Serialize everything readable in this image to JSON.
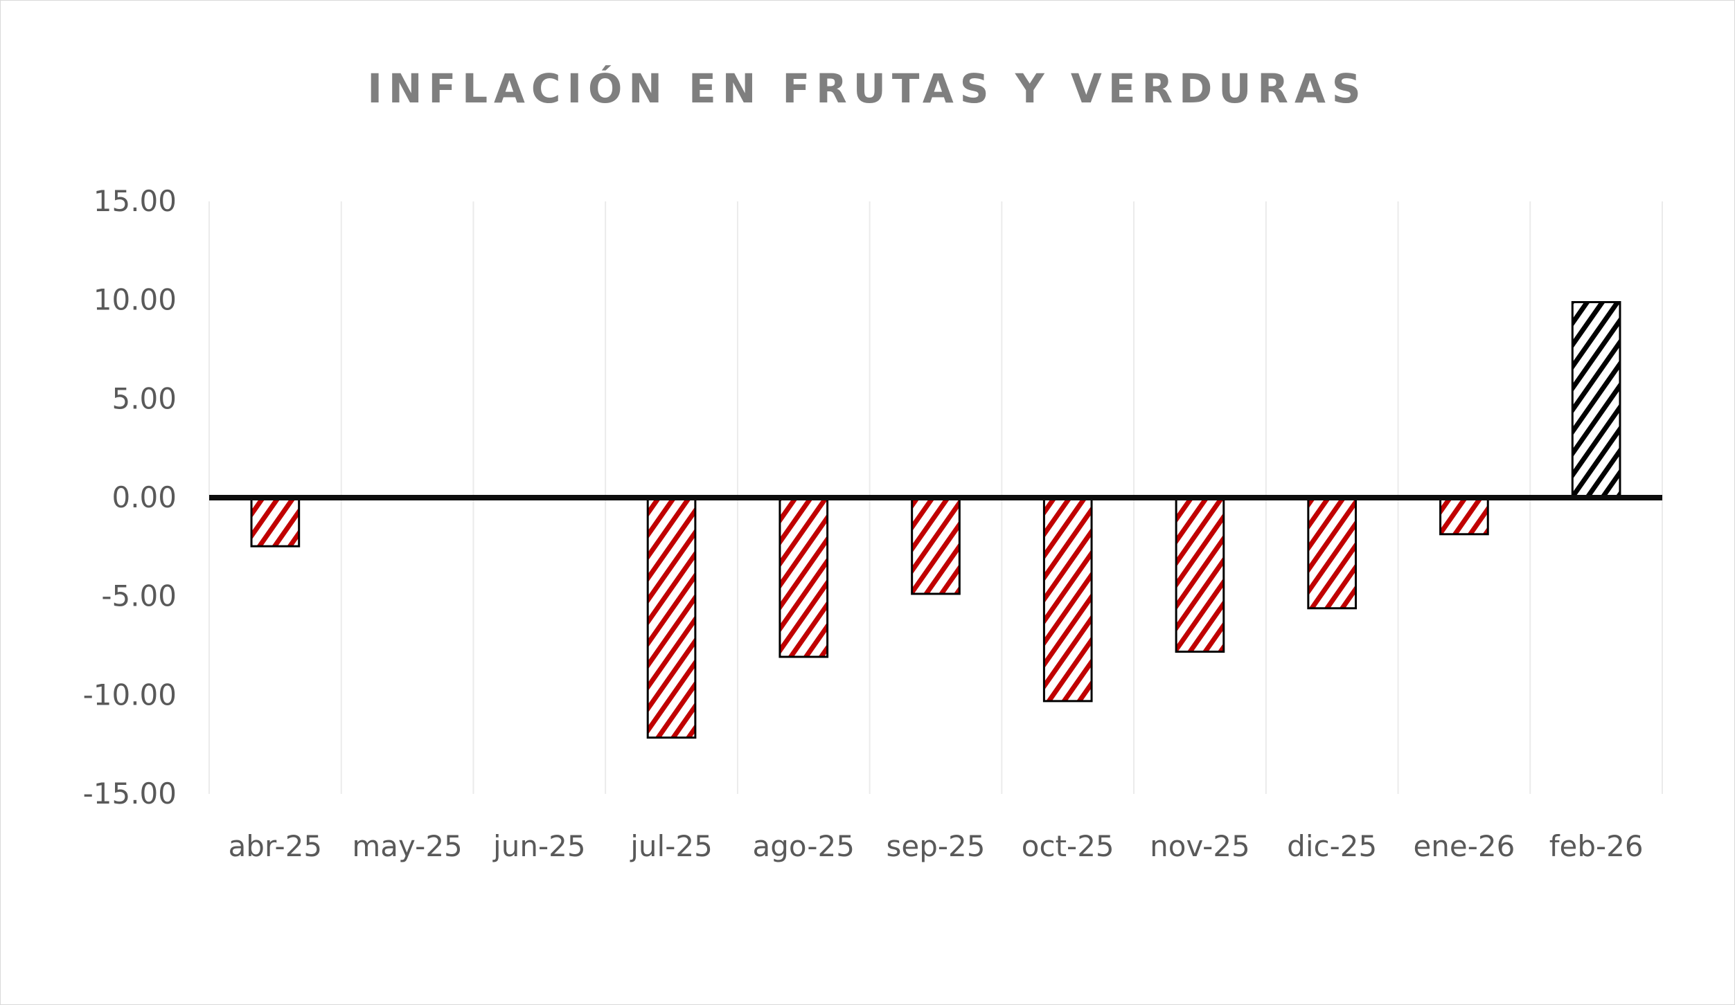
{
  "chart_data": {
    "type": "bar",
    "title": "INFLACIÓN EN FRUTAS Y VERDURAS",
    "xlabel": "",
    "ylabel": "",
    "categories": [
      "abr-25",
      "may-25",
      "jun-25",
      "jul-25",
      "ago-25",
      "sep-25",
      "oct-25",
      "nov-25",
      "dic-25",
      "ene-26",
      "feb-26"
    ],
    "values": [
      -2.46,
      0,
      0,
      -12.15,
      -8.06,
      -4.87,
      -10.3,
      -7.8,
      -5.6,
      -1.85,
      9.9
    ],
    "ylim": [
      -15,
      15
    ],
    "yticks": [
      "15.00",
      "10.00",
      "5.00",
      "0.00",
      "-5.00",
      "-10.00",
      "-15.00"
    ],
    "ytick_values": [
      15,
      10,
      5,
      0,
      -5,
      -10,
      -15
    ],
    "grid": "vertical",
    "legend": "none",
    "fill_pattern": "diagonal-hatch",
    "colors": {
      "negative": "#c00000",
      "highlight": "#000000",
      "border": "#000000",
      "grid": "#ebebeb",
      "title": "#7f7f7f",
      "ticks": "#595959"
    },
    "highlighted_category": "feb-26"
  }
}
